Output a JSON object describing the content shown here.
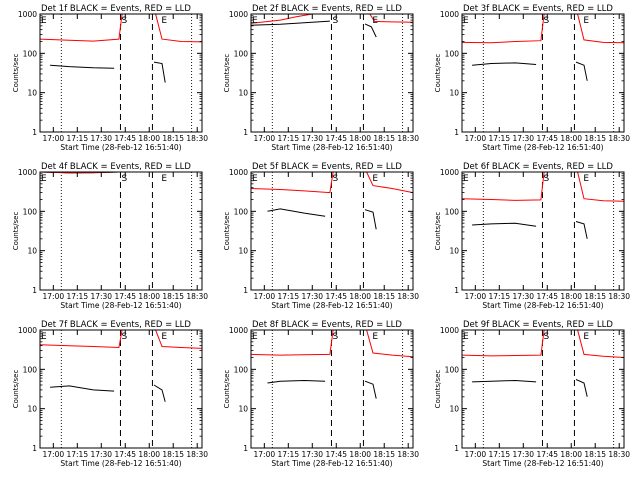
{
  "colors": {
    "events": "#000000",
    "lld": "#ff0000",
    "axes": "#000000",
    "background": "#ffffff"
  },
  "chart_data": [
    {
      "type": "line",
      "title": "Det 1f BLACK = Events, RED = LLD",
      "xlabel": "Start Time (28-Feb-12 16:51:40)",
      "ylabel": "Counts/sec",
      "yscale": "log",
      "ylim": [
        1,
        1000
      ],
      "xlim": [
        "16:51:40",
        "18:33:00"
      ],
      "xticks": [
        "17:00",
        "17:15",
        "17:30",
        "17:45",
        "18:00",
        "18:15",
        "18:30"
      ],
      "yticks": [
        1,
        10,
        100,
        1000
      ],
      "markers": [
        {
          "label": "E",
          "time": "16:51:40"
        },
        {
          "label": "S",
          "time": "17:42:00"
        },
        {
          "label": "E",
          "time": "18:07:00"
        }
      ],
      "dotted_times": [
        "17:05:00",
        "18:26:30"
      ],
      "dashed_times": [
        "17:42:00",
        "18:02:00"
      ],
      "series": [
        {
          "name": "Events",
          "color": "#000000",
          "x": [
            "16:58:00",
            "17:10:00",
            "17:25:00",
            "17:38:00"
          ],
          "y": [
            50,
            46,
            43,
            42
          ]
        },
        {
          "name": "Events",
          "color": "#000000",
          "x": [
            "18:03:00",
            "18:08:00",
            "18:10:00"
          ],
          "y": [
            60,
            55,
            18
          ]
        },
        {
          "name": "LLD",
          "color": "#ff0000",
          "x": [
            "16:51:40",
            "17:10:00",
            "17:25:00",
            "17:41:00",
            "17:43:00"
          ],
          "y": [
            230,
            215,
            205,
            230,
            1000
          ]
        },
        {
          "name": "LLD",
          "color": "#ff0000",
          "x": [
            "18:00:00",
            "18:04:00",
            "18:08:00",
            "18:20:00",
            "18:33:00"
          ],
          "y": [
            1000,
            1000,
            230,
            200,
            195
          ]
        }
      ]
    },
    {
      "type": "line",
      "title": "Det 2f BLACK = Events, RED = LLD",
      "xlabel": "Start Time (28-Feb-12 16:51:40)",
      "ylabel": "Counts/sec",
      "yscale": "log",
      "ylim": [
        1,
        1000
      ],
      "xlim": [
        "16:51:40",
        "18:33:00"
      ],
      "xticks": [
        "17:00",
        "17:15",
        "17:30",
        "17:45",
        "18:00",
        "18:15",
        "18:30"
      ],
      "yticks": [
        1,
        10,
        100,
        1000
      ],
      "markers": [
        {
          "label": "E",
          "time": "16:51:40"
        },
        {
          "label": "S",
          "time": "17:42:00"
        },
        {
          "label": "E",
          "time": "18:07:00"
        }
      ],
      "dotted_times": [
        "17:05:00",
        "18:26:30"
      ],
      "dashed_times": [
        "17:42:00",
        "18:02:00"
      ],
      "series": [
        {
          "name": "Events",
          "color": "#000000",
          "x": [
            "16:51:40",
            "17:10:00",
            "17:25:00",
            "17:41:00"
          ],
          "y": [
            520,
            550,
            600,
            660
          ]
        },
        {
          "name": "Events",
          "color": "#000000",
          "x": [
            "18:03:00",
            "18:07:00",
            "18:10:00"
          ],
          "y": [
            560,
            470,
            260
          ]
        },
        {
          "name": "LLD",
          "color": "#ff0000",
          "x": [
            "16:51:40",
            "17:10:00",
            "17:20:00",
            "17:30:00",
            "17:41:00",
            "17:43:00"
          ],
          "y": [
            580,
            700,
            850,
            1000,
            1000,
            1000
          ]
        },
        {
          "name": "LLD",
          "color": "#ff0000",
          "x": [
            "18:00:00",
            "18:06:00",
            "18:09:00",
            "18:20:00",
            "18:33:00"
          ],
          "y": [
            1000,
            1000,
            650,
            630,
            620
          ]
        }
      ]
    },
    {
      "type": "line",
      "title": "Det 3f BLACK = Events, RED = LLD",
      "xlabel": "Start Time (28-Feb-12 16:51:40)",
      "ylabel": "Counts/sec",
      "yscale": "log",
      "ylim": [
        1,
        1000
      ],
      "xlim": [
        "16:51:40",
        "18:33:00"
      ],
      "xticks": [
        "17:00",
        "17:15",
        "17:30",
        "17:45",
        "18:00",
        "18:15",
        "18:30"
      ],
      "yticks": [
        1,
        10,
        100,
        1000
      ],
      "markers": [
        {
          "label": "E",
          "time": "16:51:40"
        },
        {
          "label": "S",
          "time": "17:42:00"
        },
        {
          "label": "E",
          "time": "18:07:00"
        }
      ],
      "dotted_times": [
        "17:05:00",
        "18:26:30"
      ],
      "dashed_times": [
        "17:42:00",
        "18:02:00"
      ],
      "series": [
        {
          "name": "Events",
          "color": "#000000",
          "x": [
            "16:58:00",
            "17:10:00",
            "17:25:00",
            "17:38:00"
          ],
          "y": [
            50,
            55,
            57,
            52
          ]
        },
        {
          "name": "Events",
          "color": "#000000",
          "x": [
            "18:03:00",
            "18:08:00",
            "18:10:00"
          ],
          "y": [
            60,
            50,
            20
          ]
        },
        {
          "name": "LLD",
          "color": "#ff0000",
          "x": [
            "16:51:40",
            "17:10:00",
            "17:25:00",
            "17:41:00",
            "17:43:00"
          ],
          "y": [
            190,
            185,
            200,
            210,
            1000
          ]
        },
        {
          "name": "LLD",
          "color": "#ff0000",
          "x": [
            "18:00:00",
            "18:04:00",
            "18:08:00",
            "18:20:00",
            "18:33:00"
          ],
          "y": [
            1000,
            1000,
            220,
            190,
            185
          ]
        }
      ]
    },
    {
      "type": "line",
      "title": "Det 4f BLACK = Events, RED = LLD",
      "xlabel": "Start Time (28-Feb-12 16:51:40)",
      "ylabel": "Counts/sec",
      "yscale": "log",
      "ylim": [
        1,
        1000
      ],
      "xlim": [
        "16:51:40",
        "18:33:00"
      ],
      "xticks": [
        "17:00",
        "17:15",
        "17:30",
        "17:45",
        "18:00",
        "18:15",
        "18:30"
      ],
      "yticks": [
        1,
        10,
        100,
        1000
      ],
      "markers": [
        {
          "label": "E",
          "time": "16:51:40"
        },
        {
          "label": "S",
          "time": "17:42:00"
        },
        {
          "label": "E",
          "time": "18:07:00"
        }
      ],
      "dotted_times": [
        "17:05:00",
        "18:26:30"
      ],
      "dashed_times": [
        "17:42:00",
        "18:02:00"
      ],
      "series": [
        {
          "name": "Events",
          "color": "#000000",
          "x": [
            "16:51:40",
            "17:10:00",
            "17:25:00",
            "17:41:00"
          ],
          "y": [
            1000,
            950,
            960,
            1000
          ]
        },
        {
          "name": "LLD",
          "color": "#ff0000",
          "x": [
            "16:51:40",
            "17:10:00",
            "17:25:00",
            "17:41:00",
            "17:43:00"
          ],
          "y": [
            1000,
            960,
            970,
            1000,
            1000
          ]
        },
        {
          "name": "LLD",
          "color": "#ff0000",
          "x": [
            "18:00:00",
            "18:04:00",
            "18:08:00",
            "18:20:00",
            "18:33:00"
          ],
          "y": [
            1000,
            1000,
            1000,
            1000,
            1000
          ]
        }
      ]
    },
    {
      "type": "line",
      "title": "Det 5f BLACK = Events, RED = LLD",
      "xlabel": "Start Time (28-Feb-12 16:51:40)",
      "ylabel": "Counts/sec",
      "yscale": "log",
      "ylim": [
        1,
        1000
      ],
      "xlim": [
        "16:51:40",
        "18:33:00"
      ],
      "xticks": [
        "17:00",
        "17:15",
        "17:30",
        "17:45",
        "18:00",
        "18:15",
        "18:30"
      ],
      "yticks": [
        1,
        10,
        100,
        1000
      ],
      "markers": [
        {
          "label": "E",
          "time": "16:51:40"
        },
        {
          "label": "S",
          "time": "17:42:00"
        },
        {
          "label": "E",
          "time": "18:07:00"
        }
      ],
      "dotted_times": [
        "17:05:00",
        "18:26:30"
      ],
      "dashed_times": [
        "17:42:00",
        "18:02:00"
      ],
      "series": [
        {
          "name": "Events",
          "color": "#000000",
          "x": [
            "17:02:00",
            "17:10:00",
            "17:25:00",
            "17:38:00"
          ],
          "y": [
            100,
            115,
            90,
            75
          ]
        },
        {
          "name": "Events",
          "color": "#000000",
          "x": [
            "18:03:00",
            "18:08:00",
            "18:10:00"
          ],
          "y": [
            110,
            95,
            35
          ]
        },
        {
          "name": "LLD",
          "color": "#ff0000",
          "x": [
            "16:51:40",
            "17:10:00",
            "17:25:00",
            "17:41:00",
            "17:43:00"
          ],
          "y": [
            380,
            360,
            330,
            300,
            1000
          ]
        },
        {
          "name": "LLD",
          "color": "#ff0000",
          "x": [
            "18:00:00",
            "18:04:00",
            "18:08:00",
            "18:20:00",
            "18:33:00"
          ],
          "y": [
            1000,
            1000,
            450,
            380,
            300
          ]
        }
      ]
    },
    {
      "type": "line",
      "title": "Det 6f BLACK = Events, RED = LLD",
      "xlabel": "Start Time (28-Feb-12 16:51:40)",
      "ylabel": "Counts/sec",
      "yscale": "log",
      "ylim": [
        1,
        1000
      ],
      "xlim": [
        "16:51:40",
        "18:33:00"
      ],
      "xticks": [
        "17:00",
        "17:15",
        "17:30",
        "17:45",
        "18:00",
        "18:15",
        "18:30"
      ],
      "yticks": [
        1,
        10,
        100,
        1000
      ],
      "markers": [
        {
          "label": "E",
          "time": "16:51:40"
        },
        {
          "label": "S",
          "time": "17:42:00"
        },
        {
          "label": "E",
          "time": "18:07:00"
        }
      ],
      "dotted_times": [
        "17:05:00",
        "18:26:30"
      ],
      "dashed_times": [
        "17:42:00",
        "18:02:00"
      ],
      "series": [
        {
          "name": "Events",
          "color": "#000000",
          "x": [
            "16:58:00",
            "17:10:00",
            "17:25:00",
            "17:38:00"
          ],
          "y": [
            45,
            48,
            50,
            42
          ]
        },
        {
          "name": "Events",
          "color": "#000000",
          "x": [
            "18:03:00",
            "18:08:00",
            "18:10:00"
          ],
          "y": [
            55,
            48,
            20
          ]
        },
        {
          "name": "LLD",
          "color": "#ff0000",
          "x": [
            "16:51:40",
            "17:10:00",
            "17:25:00",
            "17:41:00",
            "17:43:00"
          ],
          "y": [
            210,
            200,
            190,
            195,
            1000
          ]
        },
        {
          "name": "LLD",
          "color": "#ff0000",
          "x": [
            "18:00:00",
            "18:04:00",
            "18:08:00",
            "18:20:00",
            "18:33:00"
          ],
          "y": [
            1000,
            1000,
            210,
            185,
            180
          ]
        }
      ]
    },
    {
      "type": "line",
      "title": "Det 7f BLACK = Events, RED = LLD",
      "xlabel": "Start Time (28-Feb-12 16:51:40)",
      "ylabel": "Counts/sec",
      "yscale": "log",
      "ylim": [
        1,
        1000
      ],
      "xlim": [
        "16:51:40",
        "18:33:00"
      ],
      "xticks": [
        "17:00",
        "17:15",
        "17:30",
        "17:45",
        "18:00",
        "18:15",
        "18:30"
      ],
      "yticks": [
        1,
        10,
        100,
        1000
      ],
      "markers": [
        {
          "label": "E",
          "time": "16:51:40"
        },
        {
          "label": "S",
          "time": "17:42:00"
        },
        {
          "label": "E",
          "time": "18:07:00"
        }
      ],
      "dotted_times": [
        "17:05:00",
        "18:26:30"
      ],
      "dashed_times": [
        "17:42:00",
        "18:02:00"
      ],
      "series": [
        {
          "name": "Events",
          "color": "#000000",
          "x": [
            "16:58:00",
            "17:10:00",
            "17:25:00",
            "17:38:00"
          ],
          "y": [
            35,
            38,
            30,
            28
          ]
        },
        {
          "name": "Events",
          "color": "#000000",
          "x": [
            "18:03:00",
            "18:08:00",
            "18:10:00"
          ],
          "y": [
            40,
            30,
            15
          ]
        },
        {
          "name": "LLD",
          "color": "#ff0000",
          "x": [
            "16:51:40",
            "17:10:00",
            "17:25:00",
            "17:41:00",
            "17:43:00"
          ],
          "y": [
            420,
            400,
            380,
            360,
            1000
          ]
        },
        {
          "name": "LLD",
          "color": "#ff0000",
          "x": [
            "18:00:00",
            "18:04:00",
            "18:08:00",
            "18:20:00",
            "18:33:00"
          ],
          "y": [
            1000,
            1000,
            380,
            360,
            340
          ]
        }
      ]
    },
    {
      "type": "line",
      "title": "Det 8f BLACK = Events, RED = LLD",
      "xlabel": "Start Time (28-Feb-12 16:51:40)",
      "ylabel": "Counts/sec",
      "yscale": "log",
      "ylim": [
        1,
        1000
      ],
      "xlim": [
        "16:51:40",
        "18:33:00"
      ],
      "xticks": [
        "17:00",
        "17:15",
        "17:30",
        "17:45",
        "18:00",
        "18:15",
        "18:30"
      ],
      "yticks": [
        1,
        10,
        100,
        1000
      ],
      "markers": [
        {
          "label": "E",
          "time": "16:51:40"
        },
        {
          "label": "S",
          "time": "17:42:00"
        },
        {
          "label": "E",
          "time": "18:07:00"
        }
      ],
      "dotted_times": [
        "17:05:00",
        "18:26:30"
      ],
      "dashed_times": [
        "17:42:00",
        "18:02:00"
      ],
      "series": [
        {
          "name": "Events",
          "color": "#000000",
          "x": [
            "17:02:00",
            "17:10:00",
            "17:25:00",
            "17:38:00"
          ],
          "y": [
            45,
            50,
            52,
            50
          ]
        },
        {
          "name": "Events",
          "color": "#000000",
          "x": [
            "18:03:00",
            "18:08:00",
            "18:10:00"
          ],
          "y": [
            50,
            42,
            18
          ]
        },
        {
          "name": "LLD",
          "color": "#ff0000",
          "x": [
            "16:51:40",
            "17:10:00",
            "17:25:00",
            "17:41:00",
            "17:43:00"
          ],
          "y": [
            240,
            230,
            235,
            240,
            1000
          ]
        },
        {
          "name": "LLD",
          "color": "#ff0000",
          "x": [
            "18:00:00",
            "18:04:00",
            "18:08:00",
            "18:20:00",
            "18:33:00"
          ],
          "y": [
            1000,
            1000,
            260,
            230,
            210
          ]
        }
      ]
    },
    {
      "type": "line",
      "title": "Det 9f BLACK = Events, RED = LLD",
      "xlabel": "Start Time (28-Feb-12 16:51:40)",
      "ylabel": "Counts/sec",
      "yscale": "log",
      "ylim": [
        1,
        1000
      ],
      "xlim": [
        "16:51:40",
        "18:33:00"
      ],
      "xticks": [
        "17:00",
        "17:15",
        "17:30",
        "17:45",
        "18:00",
        "18:15",
        "18:30"
      ],
      "yticks": [
        1,
        10,
        100,
        1000
      ],
      "markers": [
        {
          "label": "E",
          "time": "16:51:40"
        },
        {
          "label": "S",
          "time": "17:42:00"
        },
        {
          "label": "E",
          "time": "18:07:00"
        }
      ],
      "dotted_times": [
        "17:05:00",
        "18:26:30"
      ],
      "dashed_times": [
        "17:42:00",
        "18:02:00"
      ],
      "series": [
        {
          "name": "Events",
          "color": "#000000",
          "x": [
            "16:58:00",
            "17:10:00",
            "17:25:00",
            "17:38:00"
          ],
          "y": [
            48,
            50,
            52,
            48
          ]
        },
        {
          "name": "Events",
          "color": "#000000",
          "x": [
            "18:03:00",
            "18:08:00",
            "18:10:00"
          ],
          "y": [
            55,
            45,
            20
          ]
        },
        {
          "name": "LLD",
          "color": "#ff0000",
          "x": [
            "16:51:40",
            "17:10:00",
            "17:25:00",
            "17:41:00",
            "17:43:00"
          ],
          "y": [
            230,
            220,
            225,
            230,
            1000
          ]
        },
        {
          "name": "LLD",
          "color": "#ff0000",
          "x": [
            "18:00:00",
            "18:04:00",
            "18:08:00",
            "18:20:00",
            "18:33:00"
          ],
          "y": [
            1000,
            1000,
            240,
            215,
            200
          ]
        }
      ]
    }
  ]
}
